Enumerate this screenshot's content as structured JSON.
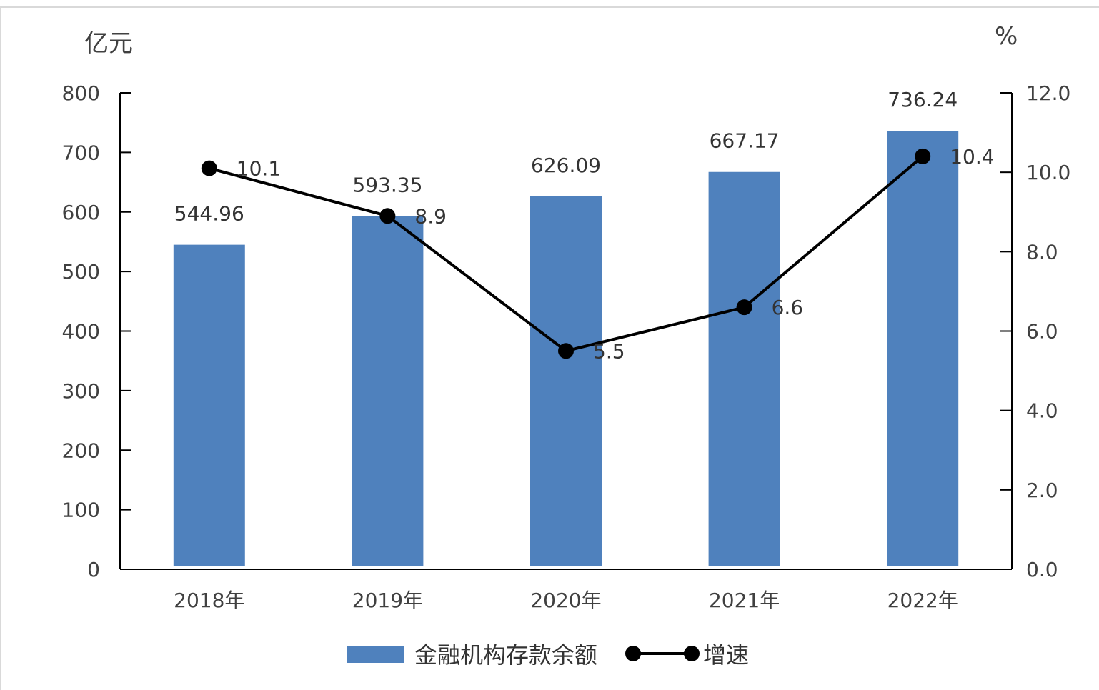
{
  "chart_data": {
    "type": "bar+line",
    "categories": [
      "2018年",
      "2019年",
      "2020年",
      "2021年",
      "2022年"
    ],
    "series": [
      {
        "name": "金融机构存款余额",
        "type": "bar",
        "axis": "left",
        "values": [
          544.96,
          593.35,
          626.09,
          667.17,
          736.24
        ],
        "labels": [
          "544.96",
          "593.35",
          "626.09",
          "667.17",
          "736.24"
        ],
        "color": "#4f81bd"
      },
      {
        "name": "增速",
        "type": "line",
        "axis": "right",
        "values": [
          10.1,
          8.9,
          5.5,
          6.6,
          10.4
        ],
        "labels": [
          "10.1",
          "8.9",
          "5.5",
          "6.6",
          "10.4"
        ],
        "color": "#000000"
      }
    ],
    "left_axis": {
      "unit": "亿元",
      "ylim": [
        0,
        800
      ],
      "ticks": [
        "0",
        "100",
        "200",
        "300",
        "400",
        "500",
        "600",
        "700",
        "800"
      ]
    },
    "right_axis": {
      "unit": "%",
      "ylim": [
        0,
        12
      ],
      "ticks": [
        "0.0",
        "2.0",
        "4.0",
        "6.0",
        "8.0",
        "10.0",
        "12.0"
      ]
    },
    "legend_position": "bottom",
    "grid": false
  }
}
